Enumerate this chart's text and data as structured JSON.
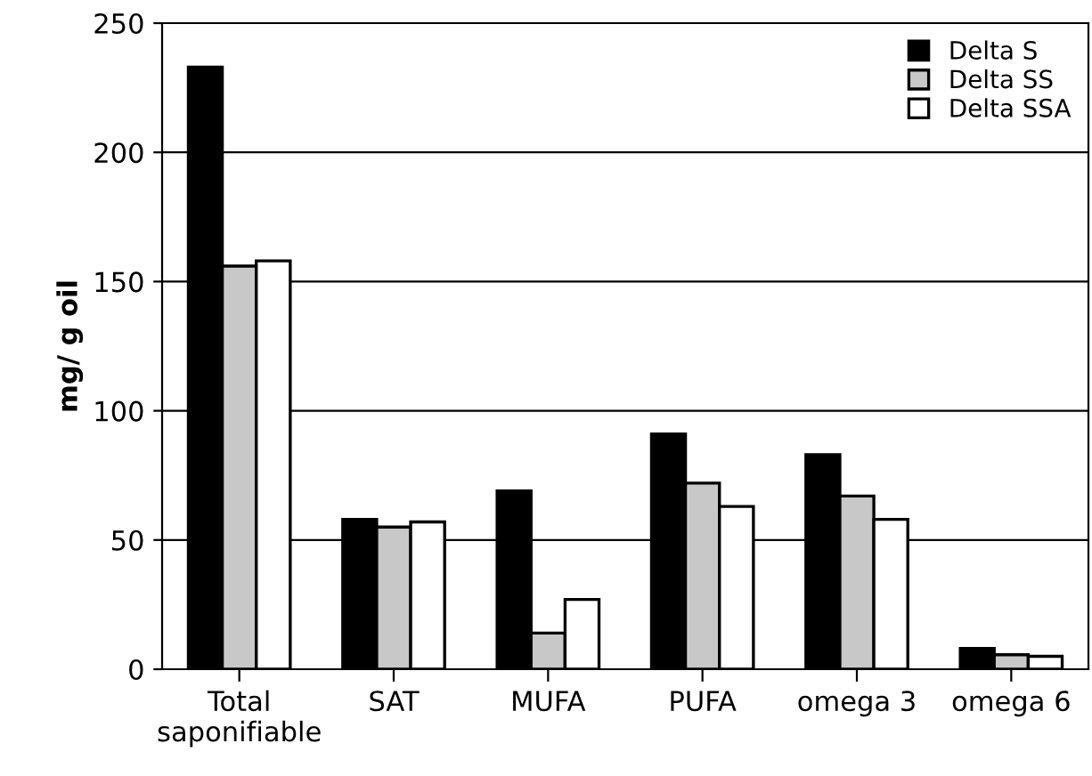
{
  "chart_data": {
    "type": "bar",
    "ylabel": "mg/ g oil",
    "categories": [
      "Total\nsaponifiable",
      "SAT",
      "MUFA",
      "PUFA",
      "omega 3",
      "omega 6"
    ],
    "series": [
      {
        "name": "Delta S",
        "color": "#000000",
        "values": [
          233,
          58,
          69,
          91,
          83,
          8
        ]
      },
      {
        "name": "Delta SS",
        "color": "#c8c8c8",
        "values": [
          156,
          55,
          14,
          72,
          67,
          5.6
        ]
      },
      {
        "name": "Delta SSA",
        "color": "#ffffff",
        "values": [
          158,
          57,
          27,
          63,
          58,
          5
        ]
      }
    ],
    "ylim": [
      0,
      250
    ],
    "yticks": [
      0,
      50,
      100,
      150,
      200,
      250
    ],
    "grid": "y",
    "legend": "top right"
  }
}
